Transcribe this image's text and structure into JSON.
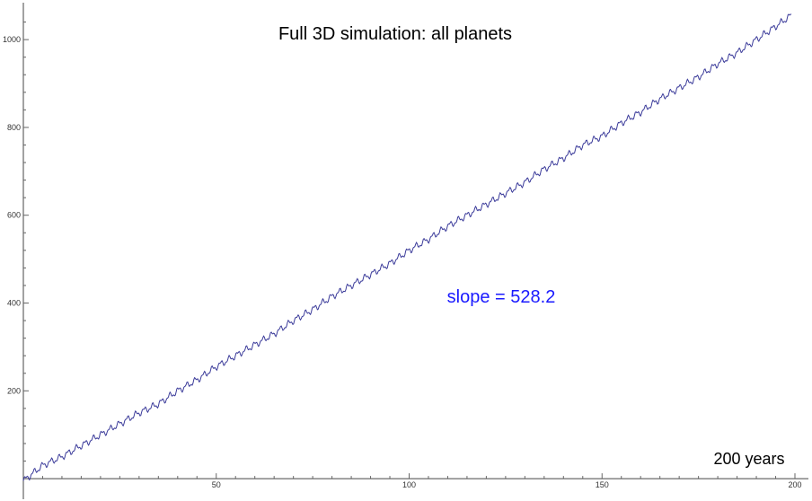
{
  "chart_data": {
    "type": "line",
    "title": "Full 3D simulation: all planets",
    "xlabel": "",
    "ylabel": "",
    "xlim": [
      0,
      200
    ],
    "ylim": [
      -10,
      1080
    ],
    "grid": false,
    "legend": "none",
    "x_ticks": [
      50,
      100,
      150,
      200
    ],
    "y_ticks": [
      200,
      400,
      600,
      800,
      1000
    ],
    "annotations": [
      {
        "text": "slope = 528.2",
        "color": "#1a1aff"
      },
      {
        "text": "200 years",
        "color": "#000000"
      }
    ],
    "series": [
      {
        "color": "#3b3b9a",
        "x": [
          0,
          5,
          10,
          15,
          20,
          25,
          30,
          35,
          40,
          45,
          50,
          55,
          60,
          65,
          70,
          75,
          80,
          85,
          90,
          95,
          100,
          105,
          110,
          115,
          120,
          125,
          130,
          135,
          140,
          145,
          150,
          155,
          160,
          165,
          170,
          175,
          180,
          185,
          190,
          195,
          199
        ],
        "y": [
          -5,
          30,
          50,
          75,
          100,
          125,
          150,
          170,
          200,
          225,
          255,
          280,
          305,
          330,
          360,
          385,
          415,
          440,
          465,
          490,
          520,
          545,
          575,
          600,
          625,
          650,
          675,
          705,
          730,
          760,
          780,
          810,
          835,
          865,
          890,
          915,
          945,
          970,
          1000,
          1030,
          1055
        ]
      }
    ]
  }
}
